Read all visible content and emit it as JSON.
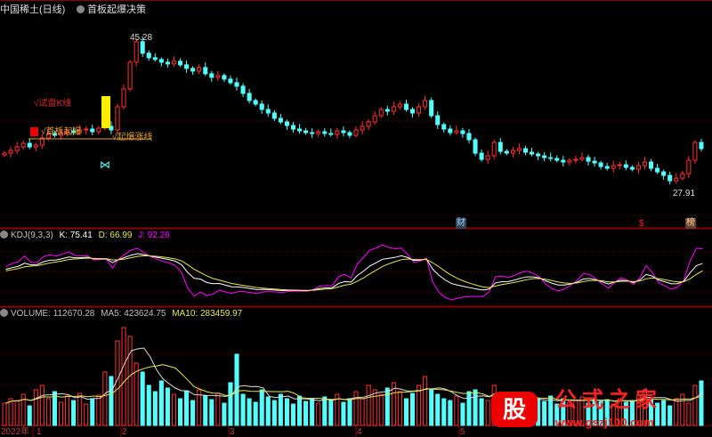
{
  "header": {
    "title": "中国稀土(日线)",
    "formula": "首板起爆决策"
  },
  "annotations": {
    "high": "45.28",
    "low": "27.91",
    "trial_k": "√试盘K线",
    "first_board": "√首板起爆",
    "breakout": "√起爆涨线",
    "icon_cai": "财",
    "icon_s": "$",
    "icon_bang": "榜"
  },
  "kdj": {
    "label": "KDJ(9,3,3)",
    "k": "K: 75.41",
    "d": "D: 66.99",
    "j": "J: 92.26"
  },
  "volume": {
    "label": "VOLUME: 112670.28",
    "ma5": "MA5: 423624.75",
    "ma10": "MA10: 283459.97"
  },
  "xaxis": {
    "year": "2022年",
    "months": [
      "1",
      "2",
      "3",
      "4",
      "5"
    ]
  },
  "watermark": {
    "logo": "股",
    "name": "公式之家",
    "url": "www.gszj100.com"
  },
  "colors": {
    "up": "#ff3232",
    "down": "#54ffff",
    "k": "#ffffff",
    "d": "#e6e64c",
    "j": "#ff00ff",
    "grid": "#8b0000"
  },
  "chart_data": {
    "type": "candlestick",
    "price_range": [
      27.91,
      45.28
    ],
    "closes": [
      32.3,
      32.6,
      33.0,
      33.4,
      33.0,
      33.2,
      34.0,
      34.5,
      34.3,
      34.6,
      34.8,
      34.6,
      34.9,
      35.0,
      34.7,
      35.1,
      35.3,
      34.9,
      37.5,
      39.5,
      42.5,
      44.8,
      43.5,
      43.0,
      42.8,
      42.5,
      42.3,
      42.6,
      42.2,
      41.8,
      41.5,
      41.9,
      41.2,
      40.8,
      41.0,
      40.6,
      40.2,
      39.8,
      39.0,
      38.2,
      37.8,
      37.2,
      36.8,
      36.2,
      35.8,
      35.4,
      35.0,
      34.8,
      34.6,
      34.5,
      34.7,
      34.5,
      34.4,
      34.8,
      34.6,
      34.3,
      34.9,
      35.3,
      35.8,
      36.5,
      37.2,
      37.0,
      37.5,
      37.8,
      37.2,
      36.8,
      37.5,
      38.2,
      36.5,
      35.5,
      35.0,
      34.6,
      34.8,
      34.5,
      33.8,
      32.3,
      31.6,
      32.0,
      33.5,
      32.5,
      32.3,
      32.6,
      32.8,
      32.4,
      32.2,
      32.0,
      31.8,
      31.7,
      31.5,
      31.3,
      31.5,
      31.6,
      31.8,
      31.4,
      31.2,
      30.8,
      30.6,
      30.9,
      31.0,
      30.7,
      30.5,
      30.9,
      31.3,
      30.6,
      30.2,
      29.8,
      29.2,
      29.5,
      30.0,
      31.5,
      33.5,
      32.8
    ],
    "volumes": [
      25,
      30,
      28,
      35,
      22,
      40,
      45,
      30,
      38,
      26,
      33,
      28,
      36,
      24,
      30,
      34,
      60,
      55,
      95,
      110,
      100,
      70,
      60,
      45,
      38,
      50,
      42,
      35,
      30,
      38,
      28,
      40,
      33,
      29,
      36,
      25,
      48,
      80,
      35,
      30,
      26,
      40,
      32,
      28,
      35,
      30,
      24,
      33,
      27,
      30,
      25,
      32,
      28,
      35,
      26,
      30,
      38,
      30,
      45,
      40,
      35,
      42,
      48,
      38,
      30,
      36,
      45,
      55,
      40,
      35,
      30,
      28,
      33,
      25,
      38,
      40,
      30,
      28,
      45,
      32,
      26,
      30,
      34,
      28,
      25,
      30,
      27,
      33,
      24,
      30,
      26,
      28,
      32,
      25,
      30,
      27,
      29,
      24,
      30,
      26,
      28,
      33,
      40,
      30,
      25,
      28,
      22,
      30,
      35,
      25,
      45,
      50
    ]
  }
}
